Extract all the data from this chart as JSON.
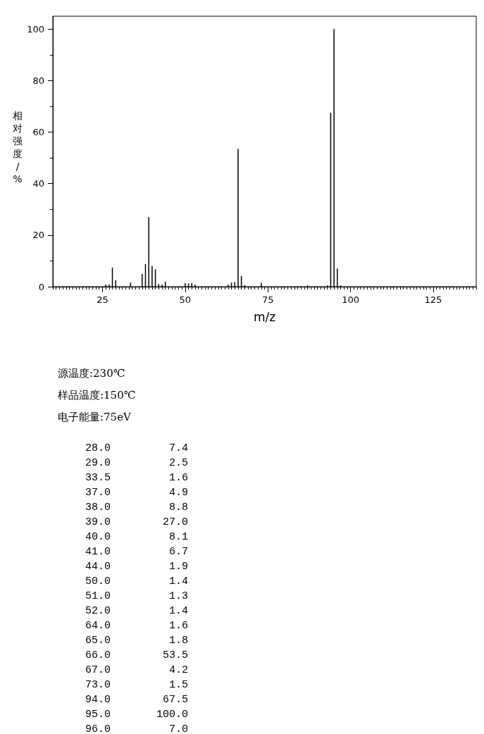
{
  "chart_data": [
    {
      "type": "bar",
      "xlabel": "m/z",
      "ylabel": "相对强度/%",
      "annotations": [
        "源温度:230℃",
        "样品温度:150℃",
        "电子能量:75eV"
      ],
      "series": [
        {
          "color": "#000000",
          "x": [
            26,
            27,
            28,
            29,
            33.5,
            37,
            38,
            39,
            40,
            41,
            42,
            43,
            44,
            50,
            51,
            52,
            53,
            63,
            64,
            65,
            66,
            67,
            68,
            73,
            87,
            93,
            94,
            95,
            96,
            97
          ],
          "values": [
            0.8,
            0.9,
            7.4,
            2.5,
            1.6,
            4.9,
            8.8,
            27.0,
            8.1,
            6.7,
            1.0,
            0.8,
            1.9,
            1.4,
            1.3,
            1.4,
            0.8,
            0.8,
            1.6,
            1.8,
            53.5,
            4.2,
            0.6,
            1.5,
            0.5,
            0.5,
            67.5,
            100.0,
            7.0,
            0.5
          ]
        }
      ],
      "xlim": [
        10,
        138
      ],
      "xticks": [
        25,
        50,
        75,
        100,
        125
      ],
      "ylim": [
        0,
        105
      ],
      "yticks": [
        0,
        {
          "value": 10,
          "label": null
        },
        20,
        {
          "value": 30,
          "label": null
        },
        40,
        {
          "value": 50,
          "label": null
        },
        60,
        {
          "value": 70,
          "label": null
        },
        80,
        {
          "value": 90,
          "label": null
        },
        100
      ]
    },
    {
      "type": "other",
      "annotations": [
        "28.0",
        "7.4",
        "29.0",
        "2.5",
        "33.5",
        "1.6",
        "37.0",
        "4.9",
        "38.0",
        "8.8",
        "39.0",
        "27.0",
        "40.0",
        "8.1",
        "41.0",
        "6.7",
        "44.0",
        "1.9",
        "50.0",
        "1.4",
        "51.0",
        "1.3",
        "52.0",
        "1.4",
        "64.0",
        "1.6",
        "65.0",
        "1.8",
        "66.0",
        "53.5",
        "67.0",
        "4.2",
        "73.0",
        "1.5",
        "94.0",
        "67.5",
        "95.0",
        "100.0",
        "96.0",
        "7.0"
      ]
    }
  ]
}
